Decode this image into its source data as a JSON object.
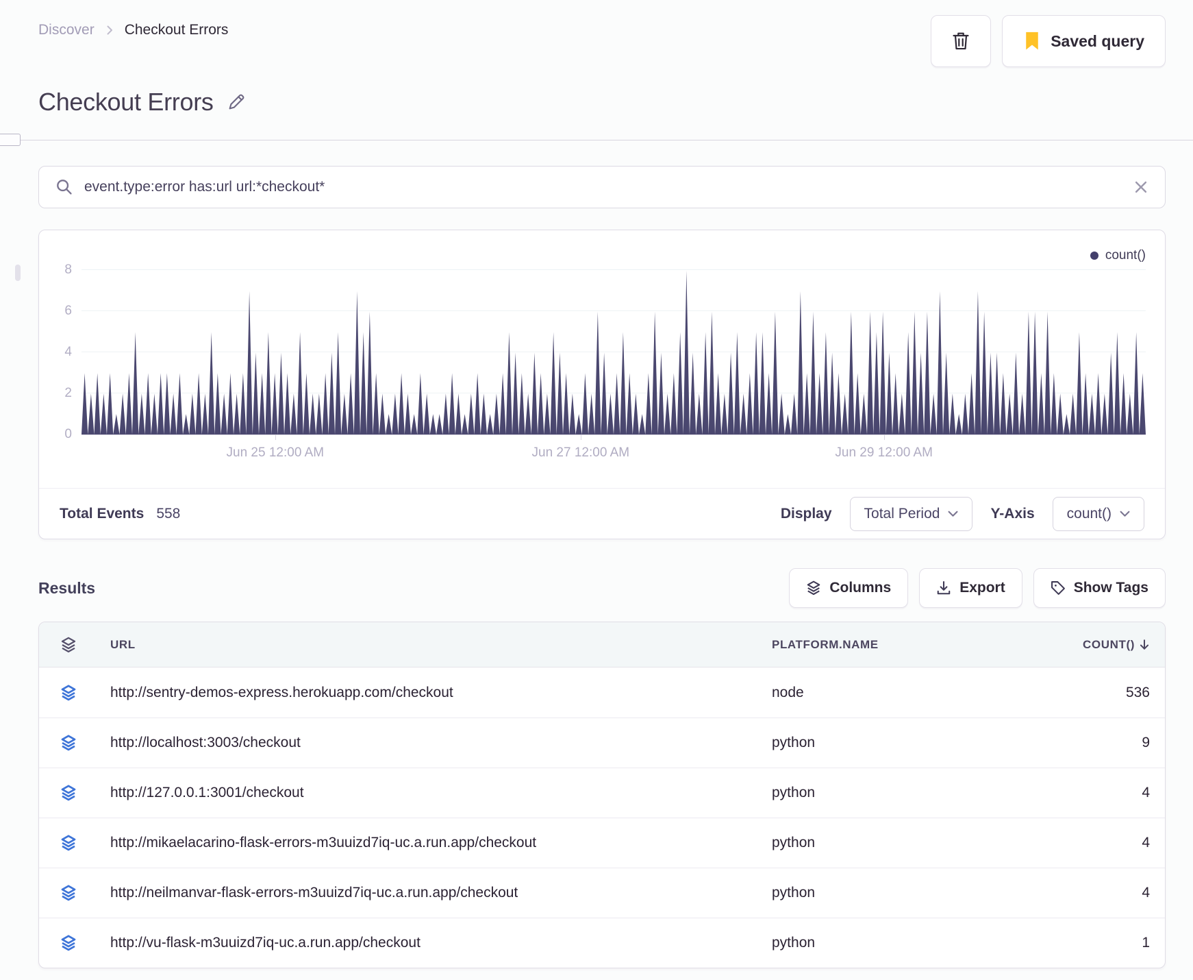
{
  "colors": {
    "accent_yellow": "#ffc227",
    "chart_fill": "#4a476f",
    "row_icon_blue": "#3d74d8",
    "dark_text": "#2b2233"
  },
  "breadcrumb": {
    "parent": "Discover",
    "current": "Checkout Errors"
  },
  "header": {
    "title": "Checkout Errors",
    "saved_query_label": "Saved query"
  },
  "search": {
    "query": "event.type:error has:url url:*checkout*"
  },
  "chart": {
    "legend": "count()"
  },
  "chart_data": {
    "type": "area",
    "title": "",
    "legend_position": "top-right",
    "grid": "horizontal",
    "ylim": [
      0,
      8
    ],
    "y_ticks": [
      0,
      2,
      4,
      6,
      8
    ],
    "x_ticks": [
      {
        "label": "Jun 25 12:00 AM",
        "pos": 0.182
      },
      {
        "label": "Jun 27 12:00 AM",
        "pos": 0.469
      },
      {
        "label": "Jun 29 12:00 AM",
        "pos": 0.754
      }
    ],
    "series": [
      {
        "name": "count()",
        "values": [
          3,
          2,
          3,
          2,
          3,
          1,
          2,
          3,
          5,
          2,
          3,
          2,
          3,
          3,
          2,
          3,
          1,
          2,
          3,
          2,
          5,
          3,
          2,
          3,
          2,
          3,
          7,
          4,
          3,
          5,
          3,
          4,
          3,
          2,
          5,
          3,
          2,
          2,
          3,
          4,
          5,
          2,
          3,
          7,
          5,
          6,
          3,
          2,
          1,
          2,
          3,
          2,
          1,
          3,
          2,
          1,
          1,
          2,
          3,
          2,
          1,
          2,
          3,
          2,
          1,
          2,
          3,
          5,
          4,
          3,
          2,
          4,
          3,
          2,
          5,
          4,
          3,
          2,
          1,
          3,
          2,
          6,
          4,
          2,
          3,
          5,
          3,
          2,
          1,
          3,
          6,
          4,
          2,
          3,
          5,
          8,
          4,
          2,
          5,
          6,
          3,
          2,
          4,
          5,
          2,
          3,
          5,
          5,
          3,
          6,
          2,
          1,
          2,
          7,
          3,
          6,
          3,
          5,
          4,
          3,
          2,
          6,
          3,
          2,
          6,
          5,
          6,
          4,
          3,
          2,
          5,
          6,
          4,
          6,
          2,
          7,
          4,
          2,
          1,
          2,
          3,
          7,
          6,
          4,
          4,
          3,
          2,
          4,
          2,
          6,
          6,
          3,
          6,
          3,
          2,
          1,
          2,
          5,
          3,
          2,
          3,
          2,
          4,
          5,
          3,
          2,
          5,
          3
        ]
      }
    ],
    "total_events": 558
  },
  "summary": {
    "total_events_label": "Total Events",
    "total_events_value": "558",
    "display_label": "Display",
    "display_value": "Total Period",
    "yaxis_label": "Y-Axis",
    "yaxis_value": "count()"
  },
  "results": {
    "heading": "Results",
    "columns_label": "Columns",
    "export_label": "Export",
    "show_tags_label": "Show Tags"
  },
  "table": {
    "headers": {
      "url": "URL",
      "platform": "PLATFORM.NAME",
      "count": "COUNT()"
    },
    "rows": [
      {
        "url": "http://sentry-demos-express.herokuapp.com/checkout",
        "platform": "node",
        "count": "536"
      },
      {
        "url": "http://localhost:3003/checkout",
        "platform": "python",
        "count": "9"
      },
      {
        "url": "http://127.0.0.1:3001/checkout",
        "platform": "python",
        "count": "4"
      },
      {
        "url": "http://mikaelacarino-flask-errors-m3uuizd7iq-uc.a.run.app/checkout",
        "platform": "python",
        "count": "4"
      },
      {
        "url": "http://neilmanvar-flask-errors-m3uuizd7iq-uc.a.run.app/checkout",
        "platform": "python",
        "count": "4"
      },
      {
        "url": "http://vu-flask-m3uuizd7iq-uc.a.run.app/checkout",
        "platform": "python",
        "count": "1"
      }
    ]
  }
}
